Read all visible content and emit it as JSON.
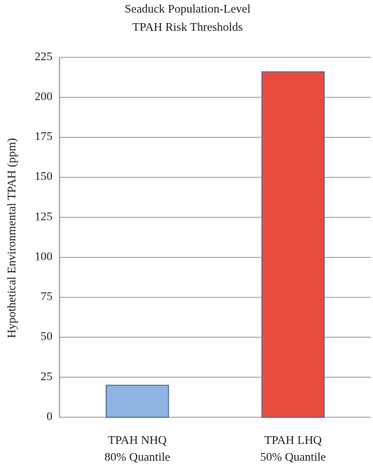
{
  "chart_data": {
    "type": "bar",
    "title": [
      "Seaduck Population-Level",
      "TPAH Risk Thresholds"
    ],
    "y_label": "Hypothetical Environmental TPAH (ppm)",
    "categories": [
      [
        "TPAH NHQ",
        "80% Quantile"
      ],
      [
        "TPAH LHQ",
        "50% Quantile"
      ]
    ],
    "values": [
      20,
      216
    ],
    "colors": [
      "#8db4e2",
      "#e84c3d"
    ],
    "ylim": [
      0,
      225
    ],
    "yticks": [
      0,
      25,
      50,
      75,
      100,
      125,
      150,
      175,
      200,
      225
    ],
    "grid": true
  }
}
